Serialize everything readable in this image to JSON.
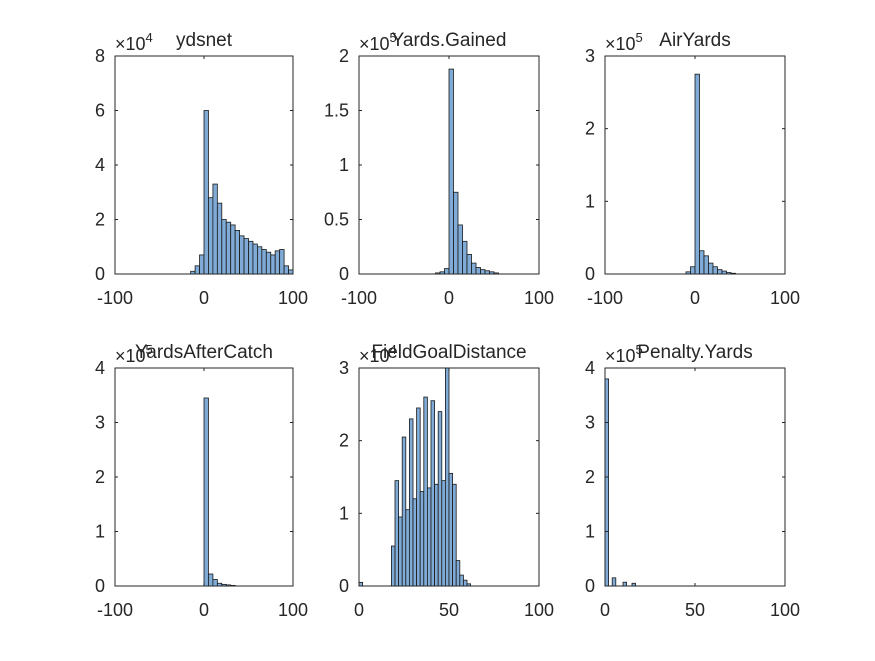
{
  "chart_data": [
    {
      "type": "bar",
      "title": "ydsnet",
      "y_exponent_label": "×10",
      "y_exponent": "4",
      "bin_width": 5,
      "xlim": [
        -100,
        100
      ],
      "ylim": [
        0,
        8
      ],
      "xticks": [
        "-100",
        "0",
        "100"
      ],
      "yticks": [
        "0",
        "2",
        "4",
        "6",
        "8"
      ],
      "bins": [
        {
          "x": -15,
          "y": 0.1
        },
        {
          "x": -10,
          "y": 0.3
        },
        {
          "x": -5,
          "y": 0.7
        },
        {
          "x": 0,
          "y": 6.0
        },
        {
          "x": 5,
          "y": 2.8
        },
        {
          "x": 10,
          "y": 3.3
        },
        {
          "x": 15,
          "y": 2.6
        },
        {
          "x": 20,
          "y": 2.0
        },
        {
          "x": 25,
          "y": 1.9
        },
        {
          "x": 30,
          "y": 1.8
        },
        {
          "x": 35,
          "y": 1.6
        },
        {
          "x": 40,
          "y": 1.4
        },
        {
          "x": 45,
          "y": 1.3
        },
        {
          "x": 50,
          "y": 1.2
        },
        {
          "x": 55,
          "y": 1.1
        },
        {
          "x": 60,
          "y": 1.0
        },
        {
          "x": 65,
          "y": 0.9
        },
        {
          "x": 70,
          "y": 0.8
        },
        {
          "x": 75,
          "y": 0.7
        },
        {
          "x": 80,
          "y": 0.85
        },
        {
          "x": 85,
          "y": 0.9
        },
        {
          "x": 90,
          "y": 0.3
        },
        {
          "x": 95,
          "y": 0.15
        }
      ]
    },
    {
      "type": "bar",
      "title": "Yards.Gained",
      "y_exponent_label": "×10",
      "y_exponent": "5",
      "bin_width": 5,
      "xlim": [
        -100,
        100
      ],
      "ylim": [
        0,
        2
      ],
      "xticks": [
        "-100",
        "0",
        "100"
      ],
      "yticks": [
        "0",
        "0.5",
        "1",
        "1.5",
        "2"
      ],
      "bins": [
        {
          "x": -15,
          "y": 0.01
        },
        {
          "x": -10,
          "y": 0.02
        },
        {
          "x": -5,
          "y": 0.05
        },
        {
          "x": 0,
          "y": 1.88
        },
        {
          "x": 5,
          "y": 0.75
        },
        {
          "x": 10,
          "y": 0.45
        },
        {
          "x": 15,
          "y": 0.3
        },
        {
          "x": 20,
          "y": 0.18
        },
        {
          "x": 25,
          "y": 0.1
        },
        {
          "x": 30,
          "y": 0.06
        },
        {
          "x": 35,
          "y": 0.04
        },
        {
          "x": 40,
          "y": 0.03
        },
        {
          "x": 45,
          "y": 0.02
        },
        {
          "x": 50,
          "y": 0.01
        }
      ]
    },
    {
      "type": "bar",
      "title": "AirYards",
      "y_exponent_label": "×10",
      "y_exponent": "5",
      "bin_width": 5,
      "xlim": [
        -100,
        100
      ],
      "ylim": [
        0,
        3
      ],
      "xticks": [
        "-100",
        "0",
        "100"
      ],
      "yticks": [
        "0",
        "1",
        "2",
        "3"
      ],
      "bins": [
        {
          "x": -10,
          "y": 0.03
        },
        {
          "x": -5,
          "y": 0.1
        },
        {
          "x": 0,
          "y": 2.75
        },
        {
          "x": 5,
          "y": 0.32
        },
        {
          "x": 10,
          "y": 0.25
        },
        {
          "x": 15,
          "y": 0.15
        },
        {
          "x": 20,
          "y": 0.1
        },
        {
          "x": 25,
          "y": 0.06
        },
        {
          "x": 30,
          "y": 0.04
        },
        {
          "x": 35,
          "y": 0.02
        },
        {
          "x": 40,
          "y": 0.01
        }
      ]
    },
    {
      "type": "bar",
      "title": "YardsAfterCatch",
      "y_exponent_label": "×10",
      "y_exponent": "5",
      "bin_width": 5,
      "xlim": [
        -100,
        100
      ],
      "ylim": [
        0,
        4
      ],
      "xticks": [
        "-100",
        "0",
        "100"
      ],
      "yticks": [
        "0",
        "1",
        "2",
        "3",
        "4"
      ],
      "bins": [
        {
          "x": 0,
          "y": 3.45
        },
        {
          "x": 5,
          "y": 0.22
        },
        {
          "x": 10,
          "y": 0.12
        },
        {
          "x": 15,
          "y": 0.05
        },
        {
          "x": 20,
          "y": 0.03
        },
        {
          "x": 25,
          "y": 0.02
        },
        {
          "x": 30,
          "y": 0.01
        }
      ]
    },
    {
      "type": "bar",
      "title": "FieldGoalDistance",
      "y_exponent_label": "×10",
      "y_exponent": "4",
      "bin_width": 2,
      "xlim": [
        0,
        100
      ],
      "ylim": [
        0,
        3
      ],
      "xticks": [
        "0",
        "50",
        "100"
      ],
      "yticks": [
        "0",
        "1",
        "2",
        "3"
      ],
      "bins": [
        {
          "x": 0,
          "y": 0.05
        },
        {
          "x": 18,
          "y": 0.55
        },
        {
          "x": 20,
          "y": 1.45
        },
        {
          "x": 22,
          "y": 0.95
        },
        {
          "x": 24,
          "y": 2.05
        },
        {
          "x": 26,
          "y": 1.05
        },
        {
          "x": 28,
          "y": 2.3
        },
        {
          "x": 30,
          "y": 1.2
        },
        {
          "x": 32,
          "y": 2.45
        },
        {
          "x": 34,
          "y": 1.3
        },
        {
          "x": 36,
          "y": 2.6
        },
        {
          "x": 38,
          "y": 1.35
        },
        {
          "x": 40,
          "y": 2.55
        },
        {
          "x": 42,
          "y": 1.4
        },
        {
          "x": 44,
          "y": 2.4
        },
        {
          "x": 46,
          "y": 1.45
        },
        {
          "x": 48,
          "y": 3.0
        },
        {
          "x": 50,
          "y": 1.55
        },
        {
          "x": 52,
          "y": 1.4
        },
        {
          "x": 54,
          "y": 0.35
        },
        {
          "x": 56,
          "y": 0.15
        },
        {
          "x": 58,
          "y": 0.08
        },
        {
          "x": 60,
          "y": 0.03
        }
      ]
    },
    {
      "type": "bar",
      "title": "Penalty.Yards",
      "y_exponent_label": "×10",
      "y_exponent": "5",
      "bin_width": 2,
      "xlim": [
        0,
        100
      ],
      "ylim": [
        0,
        4
      ],
      "xticks": [
        "0",
        "50",
        "100"
      ],
      "yticks": [
        "0",
        "1",
        "2",
        "3",
        "4"
      ],
      "bins": [
        {
          "x": 0,
          "y": 3.8
        },
        {
          "x": 4,
          "y": 0.15
        },
        {
          "x": 10,
          "y": 0.07
        },
        {
          "x": 15,
          "y": 0.05
        }
      ]
    }
  ]
}
